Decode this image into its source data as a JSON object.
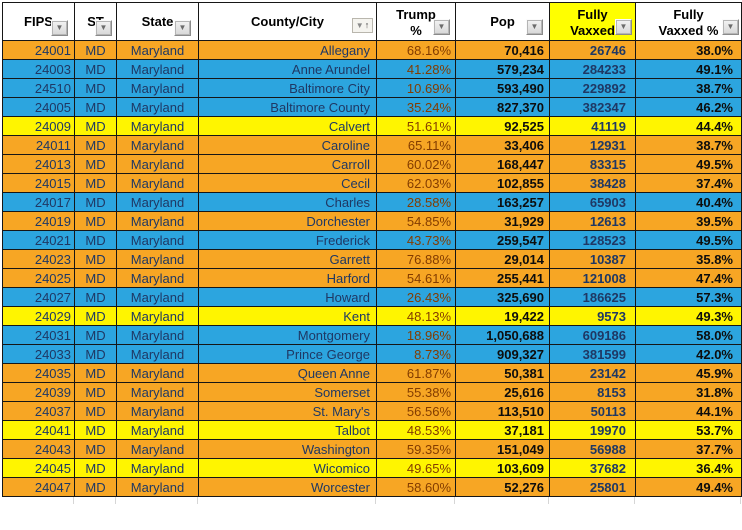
{
  "header": {
    "fips": "FIPS",
    "st": "ST",
    "state": "State",
    "county": "County/City",
    "trump_line1": "Trump",
    "trump_line2": "%",
    "pop": "Pop",
    "fully_vaxxed_line1": "Fully",
    "fully_vaxxed_line2": "Vaxxed",
    "fully_vaxxed_pct_line1": "Fully",
    "fully_vaxxed_pct_line2": "Vaxxed %"
  },
  "icons": {
    "filter_dropdown": "▼",
    "sort_ascending": "↑"
  },
  "colors": {
    "row_orange": "#F7A624",
    "row_blue": "#2CA5DF",
    "row_yellow": "#FFF500",
    "header_highlight": "#FFFF00",
    "text_navy": "#1F3864",
    "text_maroon": "#833C00",
    "text_black": "#0d0d0d"
  },
  "table": {
    "rows": [
      {
        "fips": "24001",
        "st": "MD",
        "state": "Maryland",
        "county": "Allegany",
        "trump_pct": "68.16%",
        "pop": "70,416",
        "fully_vaxxed": "26746",
        "fully_vaxxed_pct": "38.0%",
        "color": "orange"
      },
      {
        "fips": "24003",
        "st": "MD",
        "state": "Maryland",
        "county": "Anne Arundel",
        "trump_pct": "41.28%",
        "pop": "579,234",
        "fully_vaxxed": "284233",
        "fully_vaxxed_pct": "49.1%",
        "color": "blue"
      },
      {
        "fips": "24510",
        "st": "MD",
        "state": "Maryland",
        "county": "Baltimore City",
        "trump_pct": "10.69%",
        "pop": "593,490",
        "fully_vaxxed": "229892",
        "fully_vaxxed_pct": "38.7%",
        "color": "blue"
      },
      {
        "fips": "24005",
        "st": "MD",
        "state": "Maryland",
        "county": "Baltimore County",
        "trump_pct": "35.24%",
        "pop": "827,370",
        "fully_vaxxed": "382347",
        "fully_vaxxed_pct": "46.2%",
        "color": "blue"
      },
      {
        "fips": "24009",
        "st": "MD",
        "state": "Maryland",
        "county": "Calvert",
        "trump_pct": "51.61%",
        "pop": "92,525",
        "fully_vaxxed": "41119",
        "fully_vaxxed_pct": "44.4%",
        "color": "yellow"
      },
      {
        "fips": "24011",
        "st": "MD",
        "state": "Maryland",
        "county": "Caroline",
        "trump_pct": "65.11%",
        "pop": "33,406",
        "fully_vaxxed": "12931",
        "fully_vaxxed_pct": "38.7%",
        "color": "orange"
      },
      {
        "fips": "24013",
        "st": "MD",
        "state": "Maryland",
        "county": "Carroll",
        "trump_pct": "60.02%",
        "pop": "168,447",
        "fully_vaxxed": "83315",
        "fully_vaxxed_pct": "49.5%",
        "color": "orange"
      },
      {
        "fips": "24015",
        "st": "MD",
        "state": "Maryland",
        "county": "Cecil",
        "trump_pct": "62.03%",
        "pop": "102,855",
        "fully_vaxxed": "38428",
        "fully_vaxxed_pct": "37.4%",
        "color": "orange"
      },
      {
        "fips": "24017",
        "st": "MD",
        "state": "Maryland",
        "county": "Charles",
        "trump_pct": "28.58%",
        "pop": "163,257",
        "fully_vaxxed": "65903",
        "fully_vaxxed_pct": "40.4%",
        "color": "blue"
      },
      {
        "fips": "24019",
        "st": "MD",
        "state": "Maryland",
        "county": "Dorchester",
        "trump_pct": "54.85%",
        "pop": "31,929",
        "fully_vaxxed": "12613",
        "fully_vaxxed_pct": "39.5%",
        "color": "orange"
      },
      {
        "fips": "24021",
        "st": "MD",
        "state": "Maryland",
        "county": "Frederick",
        "trump_pct": "43.73%",
        "pop": "259,547",
        "fully_vaxxed": "128523",
        "fully_vaxxed_pct": "49.5%",
        "color": "blue"
      },
      {
        "fips": "24023",
        "st": "MD",
        "state": "Maryland",
        "county": "Garrett",
        "trump_pct": "76.88%",
        "pop": "29,014",
        "fully_vaxxed": "10387",
        "fully_vaxxed_pct": "35.8%",
        "color": "orange"
      },
      {
        "fips": "24025",
        "st": "MD",
        "state": "Maryland",
        "county": "Harford",
        "trump_pct": "54.61%",
        "pop": "255,441",
        "fully_vaxxed": "121008",
        "fully_vaxxed_pct": "47.4%",
        "color": "orange"
      },
      {
        "fips": "24027",
        "st": "MD",
        "state": "Maryland",
        "county": "Howard",
        "trump_pct": "26.43%",
        "pop": "325,690",
        "fully_vaxxed": "186625",
        "fully_vaxxed_pct": "57.3%",
        "color": "blue"
      },
      {
        "fips": "24029",
        "st": "MD",
        "state": "Maryland",
        "county": "Kent",
        "trump_pct": "48.13%",
        "pop": "19,422",
        "fully_vaxxed": "9573",
        "fully_vaxxed_pct": "49.3%",
        "color": "yellow"
      },
      {
        "fips": "24031",
        "st": "MD",
        "state": "Maryland",
        "county": "Montgomery",
        "trump_pct": "18.96%",
        "pop": "1,050,688",
        "fully_vaxxed": "609186",
        "fully_vaxxed_pct": "58.0%",
        "color": "blue"
      },
      {
        "fips": "24033",
        "st": "MD",
        "state": "Maryland",
        "county": "Prince George",
        "trump_pct": "8.73%",
        "pop": "909,327",
        "fully_vaxxed": "381599",
        "fully_vaxxed_pct": "42.0%",
        "color": "blue"
      },
      {
        "fips": "24035",
        "st": "MD",
        "state": "Maryland",
        "county": "Queen Anne",
        "trump_pct": "61.87%",
        "pop": "50,381",
        "fully_vaxxed": "23142",
        "fully_vaxxed_pct": "45.9%",
        "color": "orange"
      },
      {
        "fips": "24039",
        "st": "MD",
        "state": "Maryland",
        "county": "Somerset",
        "trump_pct": "55.38%",
        "pop": "25,616",
        "fully_vaxxed": "8153",
        "fully_vaxxed_pct": "31.8%",
        "color": "orange"
      },
      {
        "fips": "24037",
        "st": "MD",
        "state": "Maryland",
        "county": "St. Mary's",
        "trump_pct": "56.56%",
        "pop": "113,510",
        "fully_vaxxed": "50113",
        "fully_vaxxed_pct": "44.1%",
        "color": "orange"
      },
      {
        "fips": "24041",
        "st": "MD",
        "state": "Maryland",
        "county": "Talbot",
        "trump_pct": "48.53%",
        "pop": "37,181",
        "fully_vaxxed": "19970",
        "fully_vaxxed_pct": "53.7%",
        "color": "yellow"
      },
      {
        "fips": "24043",
        "st": "MD",
        "state": "Maryland",
        "county": "Washington",
        "trump_pct": "59.35%",
        "pop": "151,049",
        "fully_vaxxed": "56988",
        "fully_vaxxed_pct": "37.7%",
        "color": "orange"
      },
      {
        "fips": "24045",
        "st": "MD",
        "state": "Maryland",
        "county": "Wicomico",
        "trump_pct": "49.65%",
        "pop": "103,609",
        "fully_vaxxed": "37682",
        "fully_vaxxed_pct": "36.4%",
        "color": "yellow"
      },
      {
        "fips": "24047",
        "st": "MD",
        "state": "Maryland",
        "county": "Worcester",
        "trump_pct": "58.60%",
        "pop": "52,276",
        "fully_vaxxed": "25801",
        "fully_vaxxed_pct": "49.4%",
        "color": "orange"
      }
    ]
  }
}
